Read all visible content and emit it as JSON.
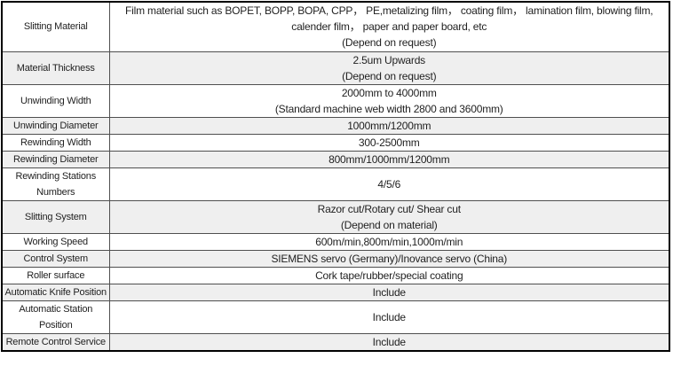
{
  "colors": {
    "row_stripe": "#efefef",
    "grid_border": "#4f4f4f",
    "outer_border": "#000000",
    "text": "#1f1f1f"
  },
  "table": {
    "rows": [
      {
        "label_lines": [
          "Slitting Material"
        ],
        "value_lines": [
          "Film material such as BOPET, BOPP, BOPA, CPP， PE,metalizing film， coating film， lamination film, blowing film, calender film， paper and paper board, etc",
          "(Depend on request)"
        ]
      },
      {
        "label_lines": [
          "Material Thickness"
        ],
        "value_lines": [
          "2.5um Upwards",
          "(Depend on request)"
        ]
      },
      {
        "label_lines": [
          "Unwinding Width"
        ],
        "value_lines": [
          "2000mm to 4000mm",
          "(Standard machine web width 2800 and 3600mm)"
        ]
      },
      {
        "label_lines": [
          "Unwinding Diameter"
        ],
        "value_lines": [
          "1000mm/1200mm"
        ]
      },
      {
        "label_lines": [
          "Rewinding Width"
        ],
        "value_lines": [
          "300-2500mm"
        ]
      },
      {
        "label_lines": [
          "Rewinding Diameter"
        ],
        "value_lines": [
          "800mm/1000mm/1200mm"
        ]
      },
      {
        "label_lines": [
          "Rewinding Stations",
          "Numbers"
        ],
        "value_lines": [
          "4/5/6"
        ]
      },
      {
        "label_lines": [
          "Slitting System"
        ],
        "value_lines": [
          "Razor cut/Rotary cut/ Shear cut",
          "(Depend on material)"
        ]
      },
      {
        "label_lines": [
          "Working Speed"
        ],
        "value_lines": [
          "600m/min,800m/min,1000m/min"
        ]
      },
      {
        "label_lines": [
          "Control System"
        ],
        "value_lines": [
          "SIEMENS servo (Germany)/Inovance servo (China)"
        ]
      },
      {
        "label_lines": [
          "Roller surface"
        ],
        "value_lines": [
          "Cork tape/rubber/special coating"
        ]
      },
      {
        "label_lines": [
          "Automatic Knife Position"
        ],
        "value_lines": [
          "Include"
        ]
      },
      {
        "label_lines": [
          "Automatic Station",
          "Position"
        ],
        "value_lines": [
          "Include"
        ]
      },
      {
        "label_lines": [
          "Remote Control Service"
        ],
        "value_lines": [
          "Include"
        ]
      }
    ]
  }
}
